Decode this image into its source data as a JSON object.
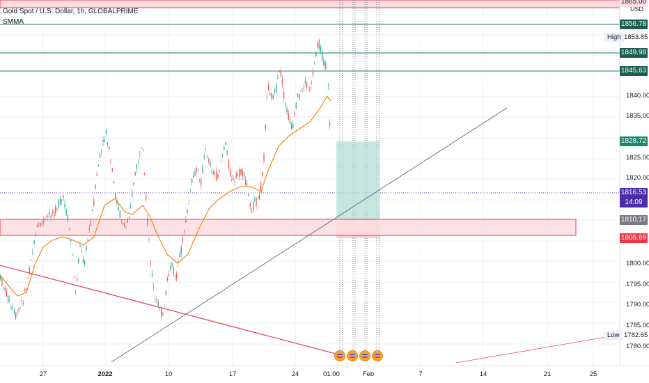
{
  "header": {
    "title": "Gold Spot / U.S. Dollar, 1h, GLOBALPRIME",
    "indicator": "SMMA"
  },
  "axis": {
    "currency": "USD",
    "y_ticks": [
      "1840.00",
      "1835.00",
      "1825.00",
      "1820.00",
      "1800.00",
      "1795.00",
      "1790.00",
      "1785.00",
      "1780.00"
    ],
    "x_ticks": [
      "27",
      "2022",
      "10",
      "17",
      "24",
      "01:00",
      "Feb",
      "7",
      "14",
      "21",
      "25"
    ]
  },
  "price_tags": {
    "top_partial": "1865.00",
    "level_1": "1856.78",
    "high_value": "1853.85",
    "level_2": "1849.98",
    "level_3": "1845.63",
    "target": "1828.72",
    "current": "1816.53",
    "countdown": "14:09",
    "support_top": "1810.17",
    "support_bottom": "1805.69",
    "low_value": "1782.65"
  },
  "labels": {
    "high": "High",
    "low": "Low"
  },
  "colors": {
    "candle_up": "#26a69a",
    "candle_down": "#ef5350",
    "smma": "#f57c00",
    "level_line": "#1b7b6b",
    "zone_red_fill": "#fcdde0",
    "zone_red_border": "#f23645",
    "target_fill": "#b2dfd4",
    "current_tag": "#4b2ea8",
    "support_top_tag": "#787b86",
    "support_bottom_tag": "#f23645"
  },
  "events": {
    "count": 4,
    "icon": "us-flag-icon"
  }
}
